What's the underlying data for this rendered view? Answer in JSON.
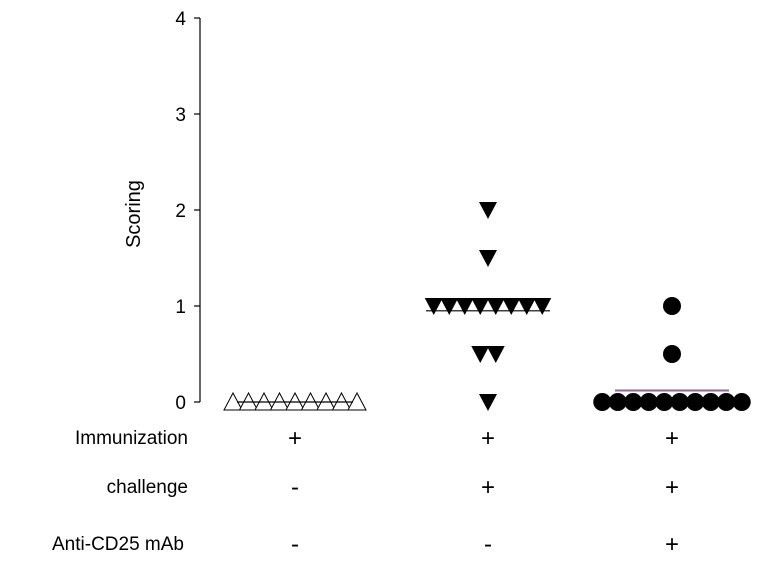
{
  "chart_data": {
    "type": "scatter",
    "ylabel": "Scoring",
    "ylim": [
      0,
      4
    ],
    "yticks": [
      0,
      1,
      2,
      3,
      4
    ],
    "colors": {
      "mean_line_group1": "#000000",
      "mean_line_group2": "#000000",
      "mean_line_group3": "#8b6a8b"
    },
    "groups": [
      {
        "marker": "open-triangle-up",
        "values": [
          0,
          0,
          0,
          0,
          0,
          0,
          0,
          0,
          0
        ],
        "mean": 0
      },
      {
        "marker": "filled-triangle-down",
        "values": [
          2,
          1.5,
          1,
          1,
          1,
          1,
          1,
          1,
          1,
          1,
          0.5,
          0.5,
          0
        ],
        "mean": 0.95
      },
      {
        "marker": "filled-circle",
        "values": [
          1,
          0.5,
          0,
          0,
          0,
          0,
          0,
          0,
          0,
          0,
          0,
          0
        ],
        "mean": 0.12
      }
    ],
    "conditions": [
      {
        "label": "Immunization",
        "signs": [
          "+",
          "+",
          "+"
        ]
      },
      {
        "label": "challenge",
        "signs": [
          "-",
          "+",
          "+"
        ]
      },
      {
        "label": "Anti-CD25 mAb",
        "signs": [
          "-",
          "-",
          "+"
        ]
      }
    ]
  }
}
